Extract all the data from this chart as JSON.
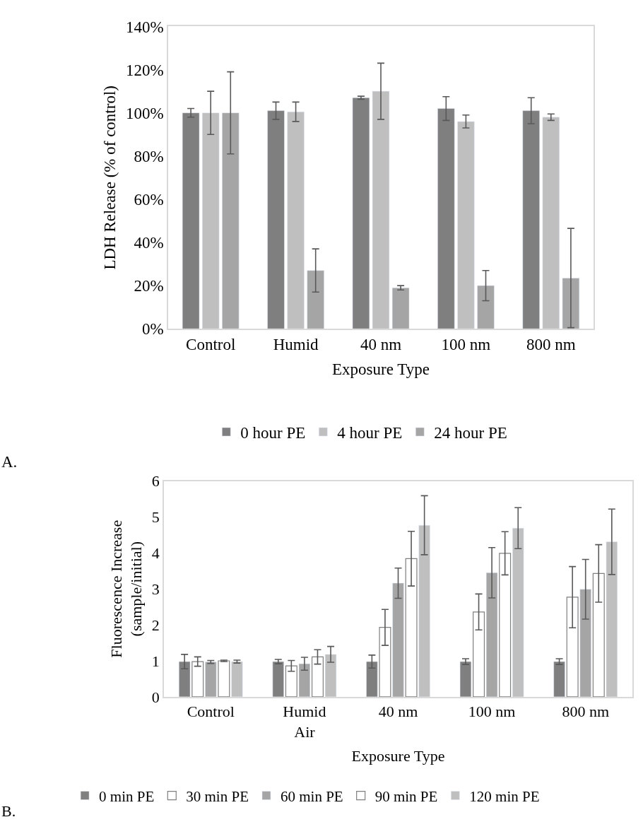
{
  "chart_data": [
    {
      "type": "bar",
      "xlabel": "Exposure Type",
      "ylabel": "LDH Release (% of control)",
      "categories": [
        "Control",
        "Humid",
        "40 nm",
        "100 nm",
        "800 nm"
      ],
      "ylim": [
        0,
        140
      ],
      "yticks": [
        {
          "value": 0,
          "label": "0%"
        },
        {
          "value": 20,
          "label": "20%"
        },
        {
          "value": 40,
          "label": "40%"
        },
        {
          "value": 60,
          "label": "60%"
        },
        {
          "value": 80,
          "label": "80%"
        },
        {
          "value": 100,
          "label": "100%"
        },
        {
          "value": 120,
          "label": "120%"
        },
        {
          "value": 140,
          "label": "140%"
        }
      ],
      "grid": false,
      "legend": "bottom",
      "annotations": [
        "A."
      ],
      "series": [
        {
          "name": "0 hour PE",
          "color": "#7f7f7f",
          "values": [
            100,
            101,
            107,
            102,
            101
          ],
          "errors": [
            2,
            4,
            0.7,
            5.5,
            6
          ]
        },
        {
          "name": "4 hour PE",
          "color": "#bfbfbf",
          "values": [
            100,
            100.5,
            110,
            96,
            98
          ],
          "errors": [
            10,
            4.5,
            13,
            3,
            1.5
          ]
        },
        {
          "name": "24 hour PE",
          "color": "#a5a5a5",
          "values": [
            100,
            27,
            19,
            20,
            23.5
          ],
          "errors": [
            19,
            10,
            1,
            7,
            23
          ]
        }
      ]
    },
    {
      "type": "bar",
      "xlabel": "Exposure Type",
      "ylabel": "Fluorescence Increase (sample/initial)",
      "categories": [
        "Control",
        "Humid Air",
        "40 nm",
        "100 nm",
        "800 nm"
      ],
      "ylim": [
        0,
        6
      ],
      "yticks": [
        0,
        1,
        2,
        3,
        4,
        5,
        6
      ],
      "grid": false,
      "legend": "bottom",
      "annotations": [
        "B."
      ],
      "series": [
        {
          "name": "0 min PE",
          "color": "#7f7f7f",
          "values": [
            0.98,
            0.98,
            0.98,
            0.98,
            0.98
          ],
          "errors": [
            0.2,
            0.06,
            0.18,
            0.08,
            0.08
          ]
        },
        {
          "name": "30 min PE",
          "color": "#ffffff",
          "values": [
            0.98,
            0.86,
            1.93,
            2.36,
            2.77
          ],
          "errors": [
            0.13,
            0.15,
            0.5,
            0.5,
            0.85
          ]
        },
        {
          "name": "60 min PE",
          "color": "#a5a5a5",
          "values": [
            0.97,
            0.92,
            3.16,
            3.45,
            2.99
          ],
          "errors": [
            0.04,
            0.18,
            0.42,
            0.7,
            0.83
          ]
        },
        {
          "name": "90 min PE",
          "color": "#ffffff",
          "values": [
            1.0,
            1.11,
            3.84,
            3.99,
            3.43
          ],
          "errors": [
            0.02,
            0.2,
            0.76,
            0.6,
            0.8
          ]
        },
        {
          "name": "120 min PE",
          "color": "#bfbfbf",
          "values": [
            0.98,
            1.18,
            4.77,
            4.69,
            4.31
          ],
          "errors": [
            0.04,
            0.22,
            0.82,
            0.57,
            0.91
          ]
        }
      ]
    }
  ]
}
